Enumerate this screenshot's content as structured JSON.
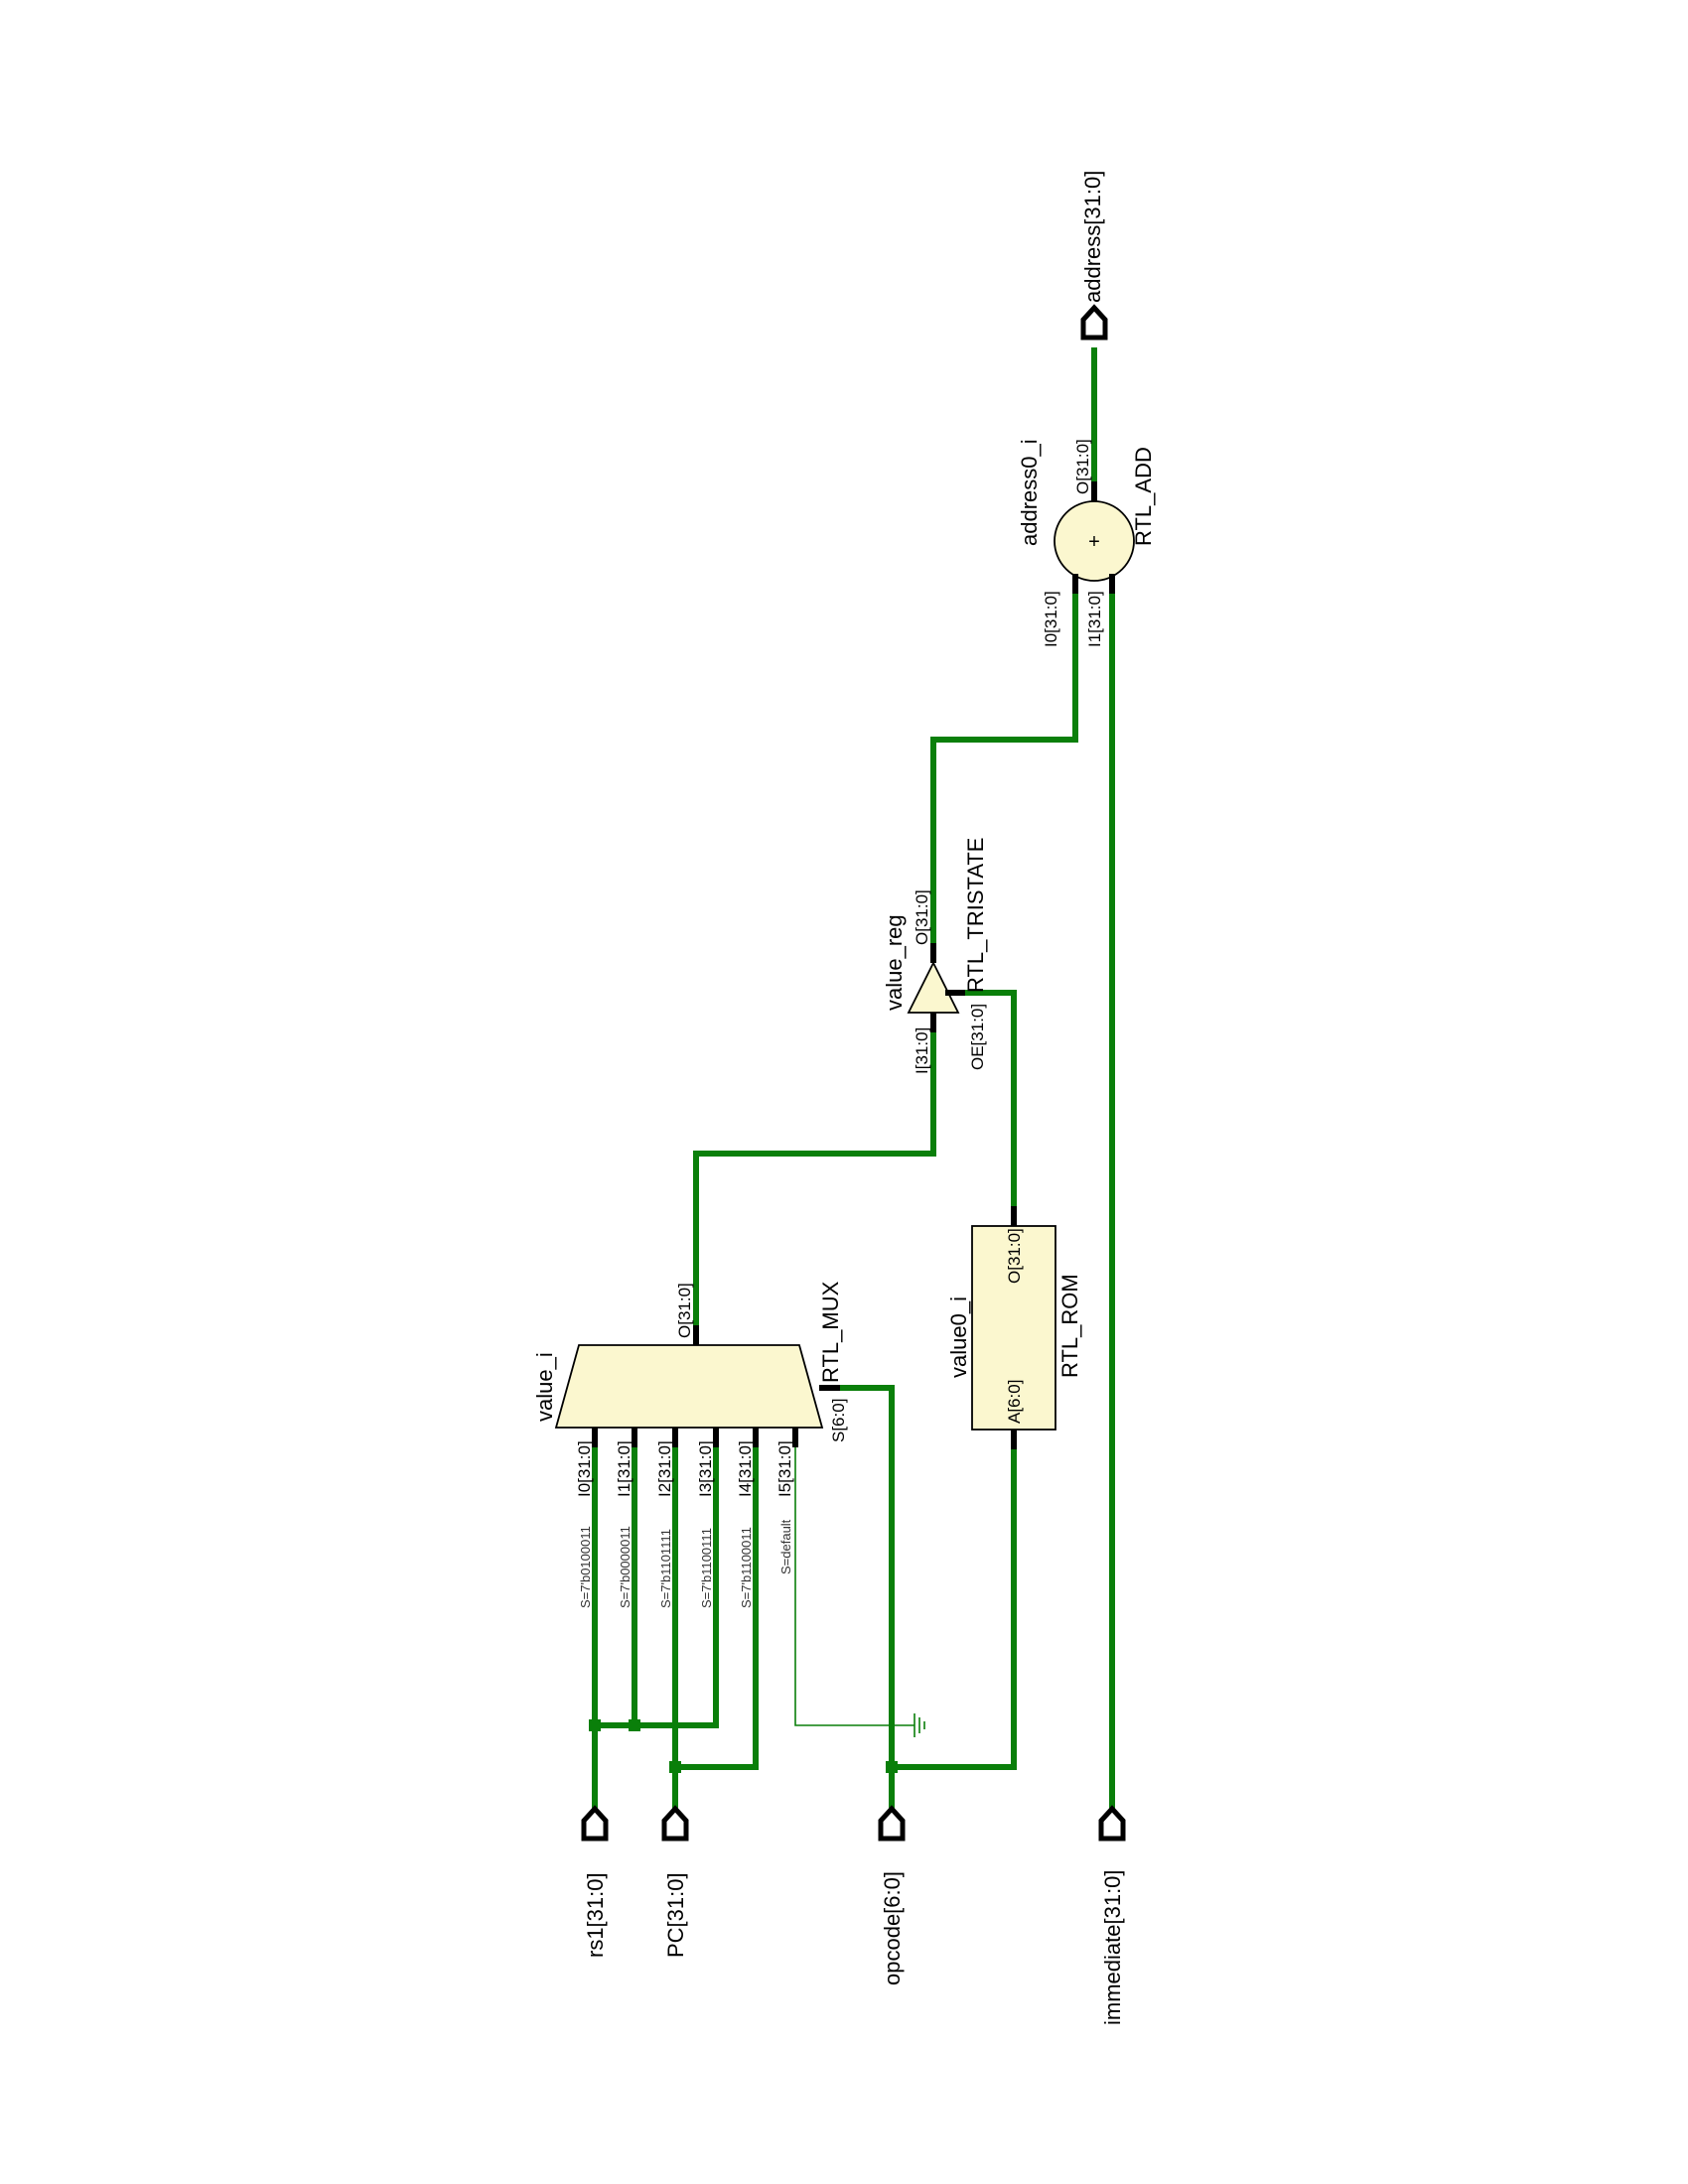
{
  "ports": {
    "rs1": "rs1[31:0]",
    "pc": "PC[31:0]",
    "opcode": "opcode[6:0]",
    "immediate": "immediate[31:0]",
    "address": "address[31:0]"
  },
  "mux": {
    "instance": "value_i",
    "type": "RTL_MUX",
    "inputs": [
      "I0[31:0]",
      "I1[31:0]",
      "I2[31:0]",
      "I3[31:0]",
      "I4[31:0]",
      "I5[31:0]"
    ],
    "conditions": [
      "S=7'b0100011",
      "S=7'b0000011",
      "S=7'b1101111",
      "S=7'b1100111",
      "S=7'b1100011",
      "S=default"
    ],
    "select": "S[6:0]",
    "output": "O[31:0]"
  },
  "rom": {
    "instance": "value0_i",
    "type": "RTL_ROM",
    "input": "A[6:0]",
    "output": "O[31:0]"
  },
  "tristate": {
    "instance": "value_reg",
    "type": "RTL_TRISTATE",
    "input": "I[31:0]",
    "enable": "OE[31:0]",
    "output": "O[31:0]"
  },
  "adder": {
    "instance": "address0_i",
    "type": "RTL_ADD",
    "symbol": "+",
    "input0": "I0[31:0]",
    "input1": "I1[31:0]",
    "output": "O[31:0]"
  },
  "colors": {
    "wire": "#0a7f0a",
    "cell_fill": "#fbf7cf",
    "outline": "#000000"
  }
}
